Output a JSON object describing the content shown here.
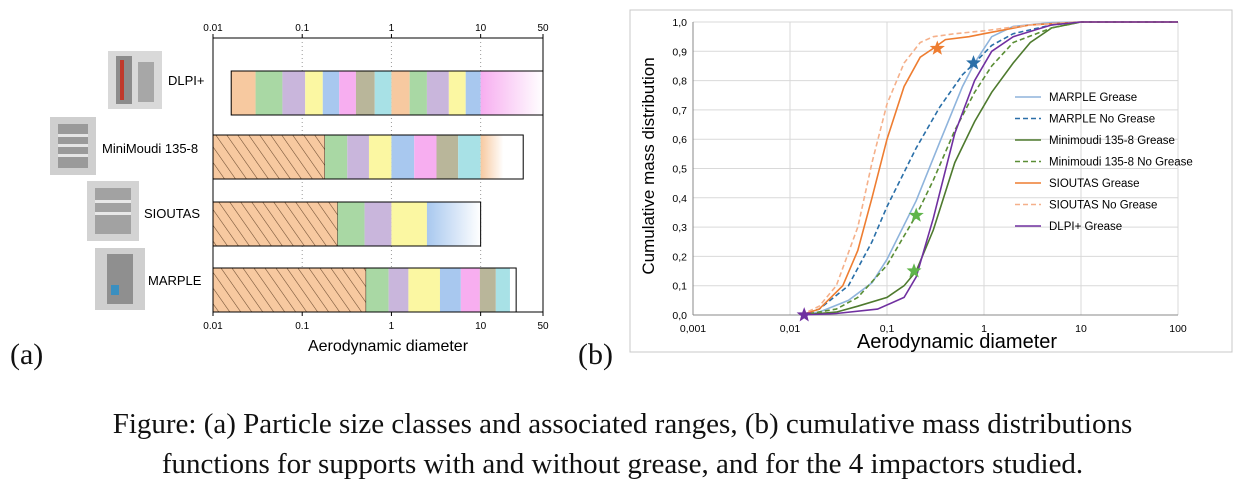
{
  "panel_a_tag": "(a)",
  "panel_b_tag": "(b)",
  "caption": {
    "line1": "Figure: (a) Particle size classes and associated ranges, (b) cumulative mass distributions",
    "line2": "functions for supports with and without grease, and for the 4 impactors studied."
  },
  "colors": {
    "orange": "#f7c9a0",
    "green": "#a9d8a4",
    "purple": "#c9b6dc",
    "yellow": "#fbf7a2",
    "blue": "#a8c8ef",
    "pink": "#f7aef0",
    "olive": "#b9b69a",
    "cyan": "#a8e1e6"
  },
  "chart_data": [
    {
      "type": "bar",
      "variant": "horizontal floating segments",
      "xlabel": "Aerodynamic diameter",
      "xscale": "log",
      "xlim": [
        0.01,
        50
      ],
      "xticks": [
        0.01,
        0.1,
        1,
        10,
        50
      ],
      "xtick_labels": [
        "0.01",
        "0.1",
        "1",
        "10",
        "50"
      ],
      "categories": [
        "DLPI+",
        "MiniMoudi 135-8",
        "SIOUTAS",
        "MARPLE"
      ],
      "series": [
        {
          "name": "DLPI+",
          "hatched_range": null,
          "bounds": [
            0.016,
            0.03,
            0.06,
            0.108,
            0.17,
            0.26,
            0.4,
            0.65,
            1.0,
            1.6,
            2.5,
            4.4,
            6.8,
            10,
            50
          ],
          "colors": [
            "orange",
            "green",
            "purple",
            "yellow",
            "blue",
            "pink",
            "olive",
            "cyan",
            "orange",
            "green",
            "purple",
            "yellow",
            "blue",
            "pink-fade"
          ]
        },
        {
          "name": "MiniMoudi 135-8",
          "hatched_range": [
            0.01,
            0.18
          ],
          "bounds": [
            0.18,
            0.32,
            0.56,
            1.0,
            1.8,
            3.2,
            5.6,
            10,
            18,
            30
          ],
          "colors": [
            "green",
            "purple",
            "yellow",
            "blue",
            "pink",
            "olive",
            "cyan",
            "orange-fade"
          ]
        },
        {
          "name": "SIOUTAS",
          "hatched_range": [
            0.01,
            0.25
          ],
          "bounds": [
            0.25,
            0.5,
            1.0,
            2.5,
            10
          ],
          "colors": [
            "green",
            "purple",
            "yellow",
            "blue-fade"
          ]
        },
        {
          "name": "MARPLE",
          "hatched_range": [
            0.01,
            0.52
          ],
          "bounds": [
            0.52,
            0.93,
            1.55,
            3.5,
            6.0,
            9.8,
            14.8,
            21.3,
            25
          ],
          "colors": [
            "green",
            "purple",
            "yellow",
            "blue",
            "pink",
            "olive",
            "cyan"
          ]
        }
      ]
    },
    {
      "type": "line",
      "xlabel": "Aerodynamic diameter",
      "ylabel": "Cumulative mass distribution",
      "xscale": "log",
      "xlim": [
        0.001,
        100
      ],
      "ylim": [
        0,
        1
      ],
      "xtick_labels": [
        "0,001",
        "0,01",
        "0,1",
        "1",
        "10",
        "100"
      ],
      "ytick_labels": [
        "0,0",
        "0,1",
        "0,2",
        "0,3",
        "0,4",
        "0,5",
        "0,6",
        "0,7",
        "0,8",
        "0,9",
        "1,0"
      ],
      "grid": "horizontal and vertical at decades",
      "legend_position": "right",
      "series": [
        {
          "name": "MARPLE Grease",
          "color": "#8fb4dc",
          "dash": "solid",
          "x": [
            0.013,
            0.02,
            0.04,
            0.07,
            0.1,
            0.2,
            0.35,
            0.6,
            0.8,
            1.2,
            2,
            5,
            10,
            100
          ],
          "y": [
            0,
            0.01,
            0.05,
            0.11,
            0.19,
            0.39,
            0.59,
            0.78,
            0.86,
            0.95,
            0.985,
            0.998,
            1,
            1
          ]
        },
        {
          "name": "MARPLE No Grease",
          "color": "#2a6fa8",
          "dash": "dashed",
          "x": [
            0.013,
            0.02,
            0.04,
            0.07,
            0.1,
            0.2,
            0.35,
            0.6,
            0.8,
            1.2,
            2,
            5,
            10,
            100
          ],
          "y": [
            0,
            0.02,
            0.1,
            0.25,
            0.37,
            0.57,
            0.71,
            0.82,
            0.86,
            0.92,
            0.96,
            0.99,
            1,
            1
          ]
        },
        {
          "name": "Minimoudi 135-8 Grease",
          "color": "#4e7a2e",
          "dash": "solid",
          "x": [
            0.013,
            0.03,
            0.05,
            0.1,
            0.15,
            0.2,
            0.3,
            0.5,
            0.8,
            1.2,
            2,
            3,
            5,
            10,
            100
          ],
          "y": [
            0,
            0.01,
            0.03,
            0.06,
            0.1,
            0.15,
            0.29,
            0.52,
            0.66,
            0.76,
            0.86,
            0.93,
            0.98,
            1,
            1
          ]
        },
        {
          "name": "Minimoudi 135-8 No Grease",
          "color": "#5a8e35",
          "dash": "dashed",
          "x": [
            0.013,
            0.03,
            0.05,
            0.1,
            0.15,
            0.2,
            0.3,
            0.5,
            0.8,
            1.2,
            2,
            5,
            10,
            100
          ],
          "y": [
            0,
            0.02,
            0.06,
            0.17,
            0.27,
            0.34,
            0.46,
            0.63,
            0.76,
            0.85,
            0.93,
            0.98,
            1,
            1
          ]
        },
        {
          "name": "SIOUTAS Grease",
          "color": "#ee7d31",
          "dash": "solid",
          "x": [
            0.013,
            0.02,
            0.035,
            0.05,
            0.07,
            0.1,
            0.15,
            0.22,
            0.3,
            0.4,
            0.7,
            1,
            3,
            10,
            100
          ],
          "y": [
            0,
            0.02,
            0.1,
            0.22,
            0.4,
            0.6,
            0.78,
            0.88,
            0.91,
            0.94,
            0.95,
            0.96,
            0.99,
            1,
            1
          ]
        },
        {
          "name": "SIOUTAS No Grease",
          "color": "#f5b08a",
          "dash": "dashed",
          "x": [
            0.013,
            0.02,
            0.03,
            0.05,
            0.07,
            0.1,
            0.15,
            0.22,
            0.3,
            0.5,
            1,
            3,
            10,
            100
          ],
          "y": [
            0,
            0.03,
            0.1,
            0.3,
            0.52,
            0.72,
            0.86,
            0.93,
            0.95,
            0.96,
            0.97,
            0.99,
            1,
            1
          ]
        },
        {
          "name": "DLPI+ Grease",
          "color": "#7030a0",
          "dash": "solid",
          "x": [
            0.013,
            0.03,
            0.08,
            0.15,
            0.2,
            0.3,
            0.5,
            0.8,
            1.2,
            2,
            5,
            10,
            100
          ],
          "y": [
            0,
            0.005,
            0.02,
            0.06,
            0.13,
            0.33,
            0.62,
            0.8,
            0.9,
            0.95,
            0.99,
            1,
            1
          ]
        }
      ],
      "markers": [
        {
          "x": 0.33,
          "y": 0.91,
          "color": "#ee7d31",
          "shape": "star"
        },
        {
          "x": 0.78,
          "y": 0.86,
          "color": "#2a6fa8",
          "shape": "star"
        },
        {
          "x": 0.2,
          "y": 0.34,
          "color": "#5fb54a",
          "shape": "star"
        },
        {
          "x": 0.19,
          "y": 0.15,
          "color": "#5fb54a",
          "shape": "star"
        },
        {
          "x": 0.014,
          "y": 0.0,
          "color": "#7030a0",
          "shape": "star"
        }
      ]
    }
  ]
}
